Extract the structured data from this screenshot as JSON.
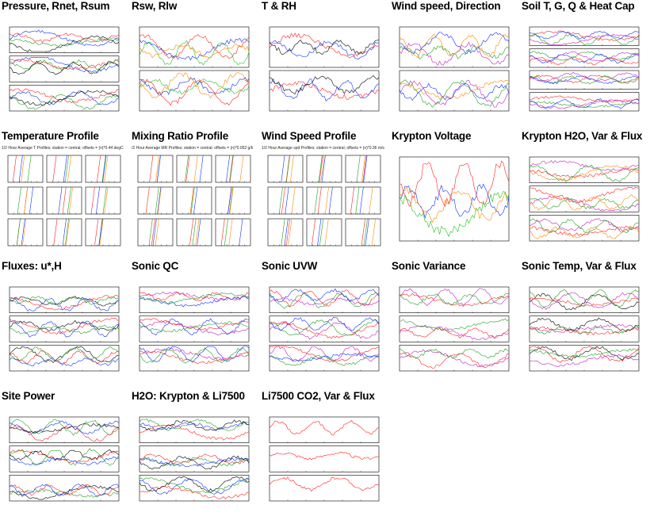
{
  "page": {
    "thumbnails": [
      {
        "title": "Pressure, Rnet, Rsum",
        "subtitle": "",
        "panels": 3,
        "colors": [
          "#1030ff",
          "#ff2020",
          "#20a020",
          "#000000"
        ]
      },
      {
        "title": "Rsw, Rlw",
        "subtitle": "",
        "panels": 2,
        "colors": [
          "#20c020",
          "#ff2020",
          "#1030ff",
          "#ff8800"
        ]
      },
      {
        "title": "T & RH",
        "subtitle": "",
        "panels": 2,
        "colors": [
          "#ff2020",
          "#1030ff",
          "#000000"
        ]
      },
      {
        "title": "Wind speed, Direction",
        "subtitle": "",
        "panels": 2,
        "colors": [
          "#c020c0",
          "#20a020",
          "#ff8800",
          "#1030ff"
        ]
      },
      {
        "title": "Soil T, G, Q & Heat Cap",
        "subtitle": "",
        "panels": 4,
        "colors": [
          "#ff2020",
          "#20a020",
          "#1030ff",
          "#c020c0"
        ]
      },
      {
        "title": "Temperature Profile",
        "subtitle": "1/2 Hour Average T Profiles; station = central; offsets = (n)*0.44 degC",
        "panels": 9,
        "colors": [
          "#ff2020",
          "#20a020",
          "#1030ff",
          "#ff8800"
        ]
      },
      {
        "title": "Mixing Ratio Profile",
        "subtitle": "/2 Hour Average MR Profiles; station = central; offsets = (n)*0.052 g/k",
        "panels": 9,
        "colors": [
          "#ff2020",
          "#20a020",
          "#1030ff",
          "#ff8800"
        ]
      },
      {
        "title": "Wind Speed Profile",
        "subtitle": "1/2 Hour Average spd Profiles; station = central; offsets = (n)*0.36 m/s",
        "panels": 9,
        "colors": [
          "#ff2020",
          "#20a020",
          "#1030ff",
          "#ff8800"
        ]
      },
      {
        "title": "Krypton Voltage",
        "subtitle": "",
        "panels": 1,
        "colors": [
          "#1030ff",
          "#ff8800",
          "#20c020",
          "#ff2020"
        ]
      },
      {
        "title": "Krypton H2O, Var & Flux",
        "subtitle": "",
        "panels": 3,
        "colors": [
          "#c020c0",
          "#20a020",
          "#ff2020",
          "#ff8800"
        ]
      },
      {
        "title": "Fluxes: u*,H",
        "subtitle": "",
        "panels": 3,
        "colors": [
          "#000000",
          "#1030ff",
          "#ff2020",
          "#20a020"
        ]
      },
      {
        "title": "Sonic QC",
        "subtitle": "",
        "panels": 3,
        "colors": [
          "#c020c0",
          "#ff2020",
          "#1030ff",
          "#20a020"
        ]
      },
      {
        "title": "Sonic UVW",
        "subtitle": "",
        "panels": 3,
        "colors": [
          "#c020c0",
          "#ff2020",
          "#20a020",
          "#1030ff"
        ]
      },
      {
        "title": "Sonic Variance",
        "subtitle": "",
        "panels": 3,
        "colors": [
          "#c020c0",
          "#ff2020",
          "#20a020"
        ]
      },
      {
        "title": "Sonic Temp, Var & Flux",
        "subtitle": "",
        "panels": 3,
        "colors": [
          "#000000",
          "#ff2020",
          "#20a020",
          "#c020c0"
        ]
      },
      {
        "title": "Site Power",
        "subtitle": "",
        "panels": 3,
        "colors": [
          "#20a020",
          "#ff2020",
          "#1030ff",
          "#000000"
        ]
      },
      {
        "title": "H2O: Krypton & Li7500",
        "subtitle": "",
        "panels": 3,
        "colors": [
          "#ff2020",
          "#20a020",
          "#1030ff",
          "#000000"
        ]
      },
      {
        "title": "Li7500 CO2, Var & Flux",
        "subtitle": "",
        "panels": 3,
        "colors": [
          "#ff2020"
        ]
      }
    ]
  }
}
